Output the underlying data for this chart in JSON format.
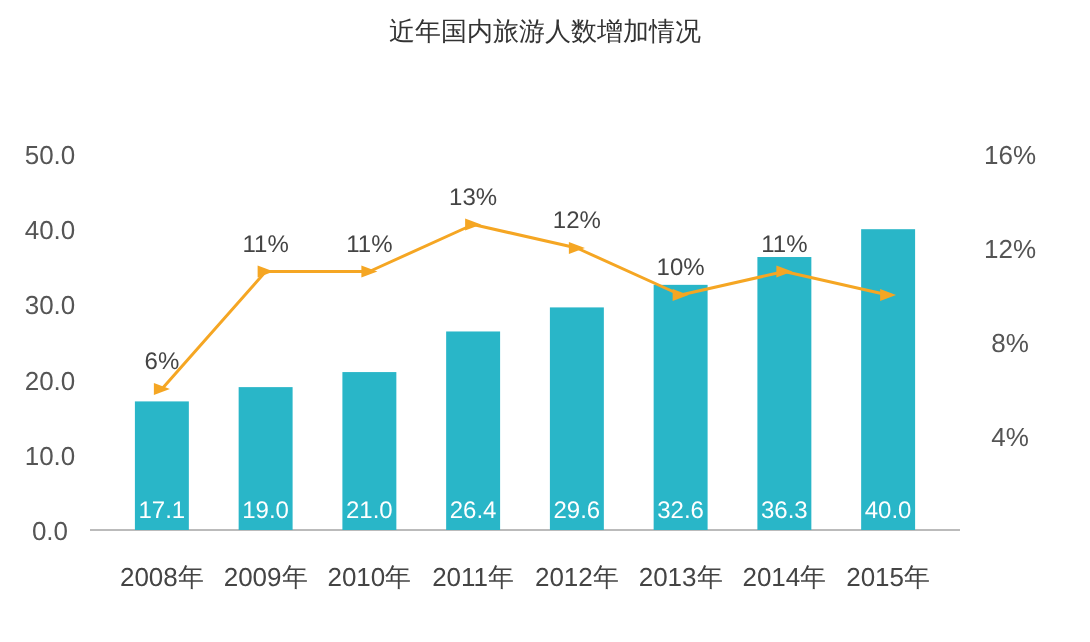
{
  "chart_data": {
    "type": "bar",
    "title": "近年国内旅游人数增加情况",
    "categories": [
      "2008年",
      "2009年",
      "2010年",
      "2011年",
      "2012年",
      "2013年",
      "2014年",
      "2015年"
    ],
    "series": [
      {
        "color": "#29b6c8",
        "values": [
          17.1,
          19.0,
          21.0,
          26.4,
          29.6,
          32.6,
          36.3,
          40.0
        ],
        "value_labels": [
          "17.1",
          "19.0",
          "21.0",
          "26.4",
          "29.6",
          "32.6",
          "36.3",
          "40.0"
        ]
      },
      {
        "type": "line",
        "axis": "y2",
        "color": "#f5a623",
        "marker": "triangle",
        "values": [
          6,
          11,
          11,
          13,
          12,
          10,
          11,
          10
        ],
        "value_labels": [
          "6%",
          "11%",
          "11%",
          "13%",
          "12%",
          "10%",
          "11%",
          null
        ]
      }
    ],
    "ylim": [
      0,
      50
    ],
    "yticks": [
      {
        "value": 0,
        "label": "0.0"
      },
      {
        "value": 10,
        "label": "10.0"
      },
      {
        "value": 20,
        "label": "20.0"
      },
      {
        "value": 30,
        "label": "30.0"
      },
      {
        "value": 40,
        "label": "40.0"
      },
      {
        "value": 50,
        "label": "50.0"
      }
    ],
    "y2lim": [
      0,
      16
    ],
    "y2ticks": [
      {
        "value": 4,
        "label": "4%"
      },
      {
        "value": 8,
        "label": "8%"
      },
      {
        "value": 12,
        "label": "12%"
      },
      {
        "value": 16,
        "label": "16%"
      }
    ],
    "grid": false
  }
}
